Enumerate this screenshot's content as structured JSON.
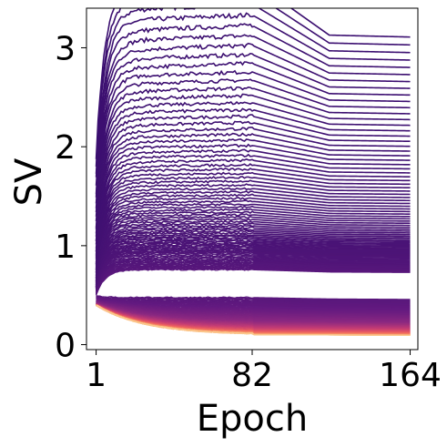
{
  "chart_data": {
    "type": "line",
    "title": "",
    "xlabel": "Epoch",
    "ylabel": "SV",
    "xlim": [
      -4,
      168
    ],
    "ylim": [
      -0.05,
      3.4
    ],
    "xticks": [
      1,
      82,
      164
    ],
    "yticks": [
      0,
      1,
      2,
      3
    ],
    "grid": false,
    "legend": "none",
    "colormap": "magma",
    "colormap_range": [
      "#3b0f70",
      "#f8c086"
    ],
    "x_keypoints": [
      1,
      4,
      14,
      82,
      122,
      164
    ],
    "series_summary": [
      {
        "rank": "largest",
        "values": [
          1.55,
          1.75,
          3.05,
          3.22,
          2.82,
          2.78
        ]
      },
      {
        "rank": "2nd",
        "values": [
          1.5,
          1.7,
          2.82,
          2.95,
          2.63,
          2.6
        ]
      },
      {
        "rank": "3rd",
        "values": [
          1.45,
          1.65,
          2.65,
          2.8,
          2.5,
          2.47
        ]
      },
      {
        "rank": "mid-upper",
        "values": [
          1.0,
          1.15,
          1.5,
          1.55,
          1.4,
          1.38
        ]
      },
      {
        "rank": "mid",
        "values": [
          0.8,
          0.85,
          0.95,
          1.0,
          0.95,
          0.95
        ]
      },
      {
        "rank": "bulk-top",
        "values": [
          0.72,
          0.72,
          0.72,
          0.75,
          0.72,
          0.72
        ]
      },
      {
        "rank": "bulk-middle",
        "values": [
          0.6,
          0.55,
          0.45,
          0.42,
          0.42,
          0.42
        ]
      },
      {
        "rank": "smallest",
        "values": [
          0.4,
          0.4,
          0.2,
          0.1,
          0.1,
          0.1
        ]
      }
    ],
    "n_series_approx": 256
  }
}
